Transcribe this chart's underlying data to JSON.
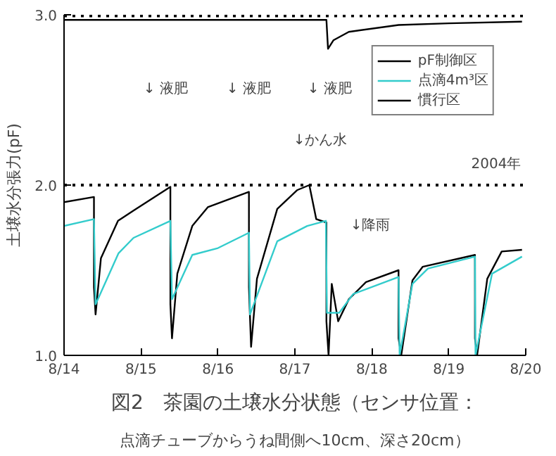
{
  "chart_data": {
    "type": "line",
    "title": "図2　茶園の土壌水分状態（センサ位置：",
    "subtitle": "点滴チューブからうね間側へ10cm、深さ20cm）",
    "ylabel": "土壌水分張力(pF)",
    "xlim": [
      "2004-08-14",
      "2004-08-20"
    ],
    "xticks": [
      {
        "value": "2004-08-14",
        "label": "8/14"
      },
      {
        "value": "2004-08-15",
        "label": "8/15"
      },
      {
        "value": "2004-08-16",
        "label": "8/16"
      },
      {
        "value": "2004-08-17",
        "label": "8/17"
      },
      {
        "value": "2004-08-18",
        "label": "8/18"
      },
      {
        "value": "2004-08-19",
        "label": "8/19"
      },
      {
        "value": "2004-08-20",
        "label": "8/20"
      }
    ],
    "ylim": [
      1,
      3
    ],
    "yticks": [
      {
        "value": 1,
        "label": "1.0"
      },
      {
        "value": 2,
        "label": "2.0"
      },
      {
        "value": 3,
        "label": "3.0"
      }
    ],
    "grid": false,
    "legend": "top right",
    "line_style": "solid",
    "marker": "none",
    "series": [
      {
        "name": "pF制御区",
        "color": "#000000",
        "x": [
          "2004-08-14T00:00",
          "2004-08-14T09:20",
          "2004-08-14T09:20",
          "2004-08-14T09:50",
          "2004-08-14T11:30",
          "2004-08-14T16:50",
          "2004-08-14T21:40",
          "2004-08-15T09:10",
          "2004-08-15T09:10",
          "2004-08-15T09:40",
          "2004-08-15T11:20",
          "2004-08-15T16:00",
          "2004-08-15T20:50",
          "2004-08-16T09:40",
          "2004-08-16T09:40",
          "2004-08-16T10:20",
          "2004-08-16T12:10",
          "2004-08-16T18:30",
          "2004-08-17T00:40",
          "2004-08-17T04:30",
          "2004-08-17T06:40",
          "2004-08-17T09:50",
          "2004-08-17T09:50",
          "2004-08-17T10:30",
          "2004-08-17T11:30",
          "2004-08-17T13:30",
          "2004-08-17T16:50",
          "2004-08-17T22:10",
          "2004-08-18T08:20",
          "2004-08-18T08:20",
          "2004-08-18T09:10",
          "2004-08-18T12:40",
          "2004-08-18T15:50",
          "2004-08-19T08:10",
          "2004-08-19T08:10",
          "2004-08-19T08:50",
          "2004-08-19T12:00",
          "2004-08-19T16:30",
          "2004-08-19T22:50"
        ],
        "values": [
          1.9,
          1.93,
          1.4,
          1.24,
          1.57,
          1.79,
          1.85,
          1.99,
          1.3,
          1.1,
          1.48,
          1.76,
          1.87,
          1.96,
          1.4,
          1.05,
          1.45,
          1.86,
          1.97,
          2.0,
          1.8,
          1.78,
          1.2,
          1.0,
          1.42,
          1.2,
          1.33,
          1.43,
          1.5,
          1.1,
          1.0,
          1.44,
          1.52,
          1.59,
          1.1,
          1.0,
          1.45,
          1.61,
          1.62
        ]
      },
      {
        "name": "点滴4m³区",
        "color": "#33cccc",
        "x": [
          "2004-08-14T00:00",
          "2004-08-14T09:20",
          "2004-08-14T09:50",
          "2004-08-14T17:00",
          "2004-08-14T21:40",
          "2004-08-15T09:10",
          "2004-08-15T09:40",
          "2004-08-15T16:00",
          "2004-08-16T00:00",
          "2004-08-16T09:40",
          "2004-08-16T10:00",
          "2004-08-16T18:30",
          "2004-08-17T03:50",
          "2004-08-17T09:40",
          "2004-08-17T10:00",
          "2004-08-17T13:50",
          "2004-08-17T18:10",
          "2004-08-18T08:20",
          "2004-08-18T08:40",
          "2004-08-18T12:40",
          "2004-08-18T17:30",
          "2004-08-19T08:10",
          "2004-08-19T08:20",
          "2004-08-19T13:30",
          "2004-08-19T22:50"
        ],
        "values": [
          1.76,
          1.8,
          1.3,
          1.6,
          1.69,
          1.79,
          1.33,
          1.59,
          1.63,
          1.72,
          1.24,
          1.67,
          1.76,
          1.79,
          1.25,
          1.25,
          1.36,
          1.46,
          1.0,
          1.42,
          1.51,
          1.58,
          1.0,
          1.48,
          1.58
        ]
      },
      {
        "name": "慣行区",
        "color": "#000000",
        "x": [
          "2004-08-14T00:00",
          "2004-08-15T00:00",
          "2004-08-16T00:00",
          "2004-08-17T00:00",
          "2004-08-17T09:50",
          "2004-08-17T10:20",
          "2004-08-17T12:00",
          "2004-08-17T16:50",
          "2004-08-18T08:20",
          "2004-08-19T00:00",
          "2004-08-19T22:50"
        ],
        "values": [
          2.97,
          2.97,
          2.97,
          2.97,
          2.97,
          2.8,
          2.85,
          2.9,
          2.94,
          2.95,
          2.96
        ]
      }
    ],
    "ref_lines": [
      {
        "axis": "y",
        "value": 3,
        "line_style": "dotted",
        "color": "#000000"
      },
      {
        "axis": "y",
        "value": 2,
        "line_style": "dotted",
        "color": "#000000"
      }
    ],
    "annotations": [
      "↓ 液肥",
      "↓ 液肥",
      "↓ 液肥",
      "↓かん水",
      "↓降雨",
      "2004年"
    ]
  }
}
